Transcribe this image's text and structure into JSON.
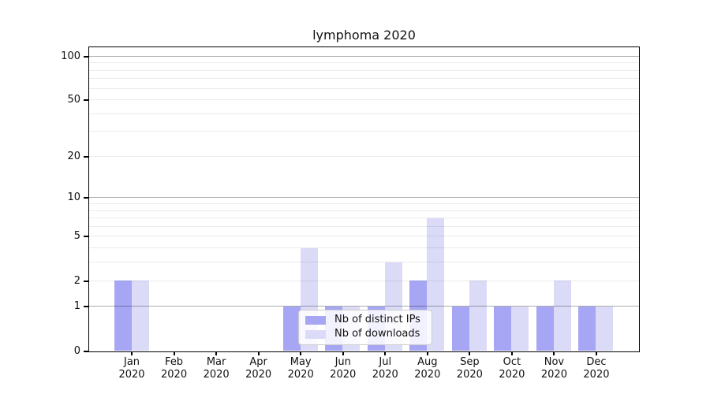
{
  "chart_data": {
    "type": "bar",
    "title": "lymphoma 2020",
    "categories": [
      "Jan 2020",
      "Feb 2020",
      "Mar 2020",
      "Apr 2020",
      "May 2020",
      "Jun 2020",
      "Jul 2020",
      "Aug 2020",
      "Sep 2020",
      "Oct 2020",
      "Nov 2020",
      "Dec 2020"
    ],
    "series": [
      {
        "name": "Nb of distinct IPs",
        "color": "#a6a6f4",
        "values": [
          2,
          0,
          0,
          0,
          1,
          1,
          1,
          2,
          1,
          1,
          1,
          1
        ]
      },
      {
        "name": "Nb of downloads",
        "color": "#dbdbf8",
        "values": [
          2,
          0,
          0,
          0,
          4,
          1,
          3,
          7,
          2,
          1,
          2,
          1
        ]
      }
    ],
    "xlabel": "",
    "ylabel": "",
    "y_scale": "log1p",
    "ylim": [
      0,
      115
    ],
    "y_ticks": [
      0,
      1,
      2,
      5,
      10,
      20,
      50,
      100
    ],
    "gridlines_major": [
      1,
      10,
      100
    ],
    "gridlines_minor": [
      2,
      3,
      4,
      5,
      6,
      7,
      8,
      9,
      20,
      30,
      40,
      50,
      60,
      70,
      80,
      90
    ],
    "grid": true,
    "legend_position": "lower center"
  }
}
